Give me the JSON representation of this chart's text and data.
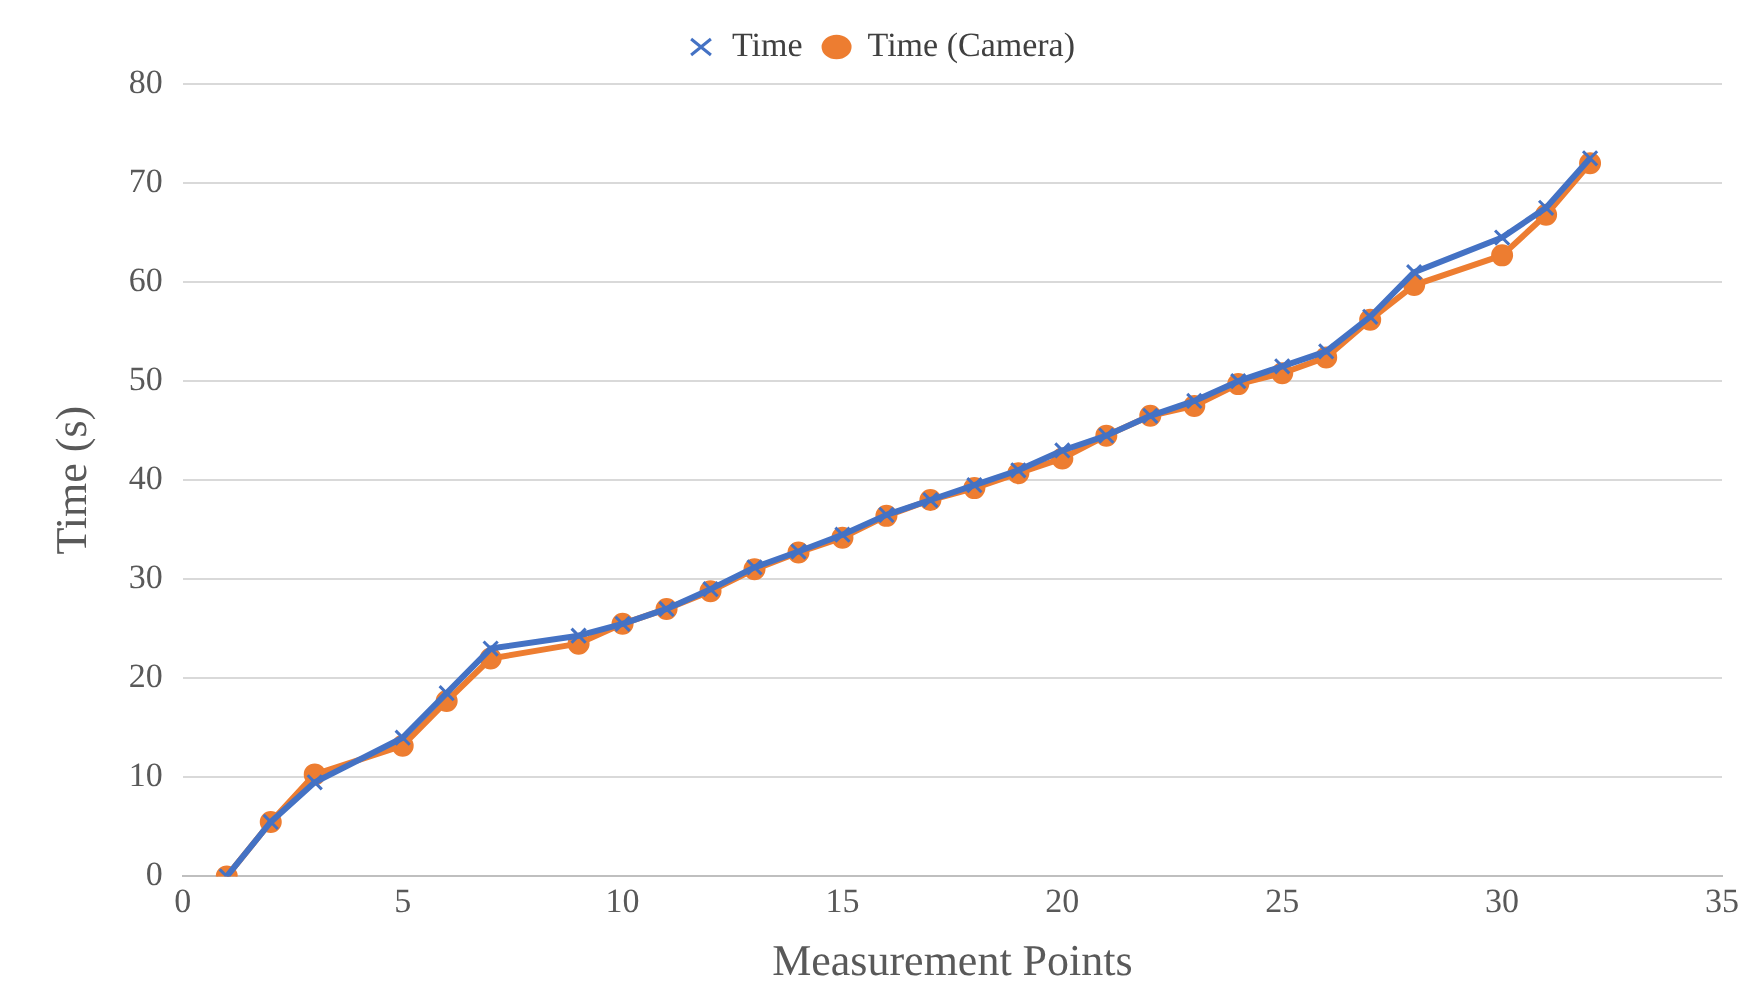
{
  "chart_data": {
    "type": "line",
    "xlabel": "Measurement Points",
    "ylabel": "Time (s)",
    "x": [
      1,
      2,
      3,
      5,
      6,
      7,
      9,
      10,
      11,
      12,
      13,
      14,
      15,
      16,
      17,
      18,
      19,
      20,
      21,
      22,
      23,
      24,
      25,
      26,
      27,
      28,
      30,
      31,
      32
    ],
    "xlim": [
      0,
      35
    ],
    "xticks": [
      0,
      5,
      10,
      15,
      20,
      25,
      30,
      35
    ],
    "ylim": [
      0,
      80
    ],
    "yticks": [
      0,
      10,
      20,
      30,
      40,
      50,
      60,
      70,
      80
    ],
    "grid": "y",
    "legend": "top",
    "series": [
      {
        "name": "Time",
        "color": "#4472c4",
        "marker": "cross",
        "values": [
          0,
          5.5,
          9.5,
          14,
          18.5,
          23,
          24.3,
          25.5,
          27,
          29,
          31.2,
          32.8,
          34.5,
          36.5,
          38,
          39.5,
          41,
          43,
          44.5,
          46.5,
          48,
          50,
          51.5,
          53,
          56.5,
          61,
          64.5,
          67.5,
          72.5
        ]
      },
      {
        "name": "Time (Camera)",
        "color": "#ed7d31",
        "marker": "circle",
        "values": [
          0,
          5.5,
          10.3,
          13.2,
          17.7,
          22,
          23.5,
          25.5,
          27,
          28.8,
          31,
          32.7,
          34.2,
          36.4,
          38,
          39.2,
          40.7,
          42.2,
          44.5,
          46.5,
          47.5,
          49.7,
          50.8,
          52.4,
          56.2,
          59.7,
          62.7,
          66.8,
          72
        ]
      }
    ]
  }
}
